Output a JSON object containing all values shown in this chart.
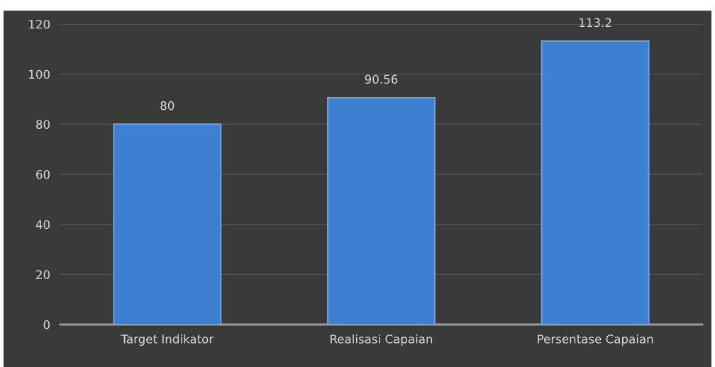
{
  "chart_data": {
    "type": "bar",
    "categories": [
      "Target Indikator",
      "Realisasi Capaian",
      "Persentase Capaian"
    ],
    "values": [
      80,
      90.56,
      113.2
    ],
    "color": "#3d7fd0",
    "ylim": [
      0,
      120
    ],
    "yticks": [
      0,
      20,
      40,
      60,
      80,
      100,
      120
    ],
    "grid": "y",
    "data_labels": true
  }
}
